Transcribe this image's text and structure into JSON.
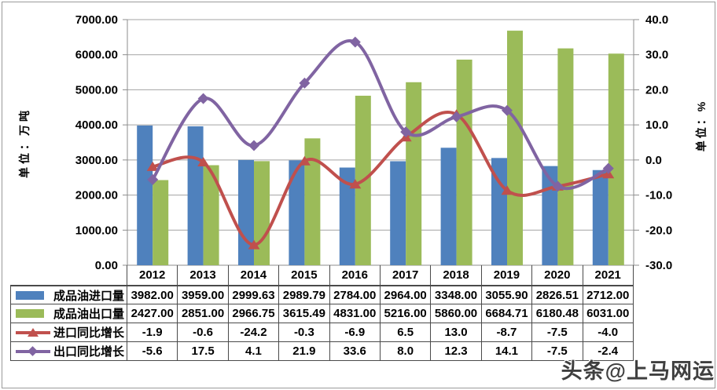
{
  "watermark": "头条@上马网运",
  "chart_data": {
    "type": "combo-bar-line",
    "title": "",
    "categories": [
      "2012",
      "2013",
      "2014",
      "2015",
      "2016",
      "2017",
      "2018",
      "2019",
      "2020",
      "2021"
    ],
    "series": [
      {
        "name": "成品油进口量",
        "type": "bar",
        "axis": "left",
        "color": "#4F81BD",
        "values": [
          3982.0,
          3959.0,
          2999.63,
          2989.79,
          2784.0,
          2964.0,
          3348.0,
          3055.9,
          2826.51,
          2712.0
        ],
        "display": [
          "3982.00",
          "3959.00",
          "2999.63",
          "2989.79",
          "2784.00",
          "2964.00",
          "3348.00",
          "3055.90",
          "2826.51",
          "2712.00"
        ]
      },
      {
        "name": "成品油出口量",
        "type": "bar",
        "axis": "left",
        "color": "#9BBB59",
        "values": [
          2427.0,
          2851.0,
          2966.75,
          3615.49,
          4831.0,
          5216.0,
          5860.0,
          6684.71,
          6180.48,
          6031.0
        ],
        "display": [
          "2427.00",
          "2851.00",
          "2966.75",
          "3615.49",
          "4831.00",
          "5216.00",
          "5860.00",
          "6684.71",
          "6180.48",
          "6031.00"
        ]
      },
      {
        "name": "进口同比增长",
        "type": "line",
        "marker": "triangle",
        "axis": "right",
        "color": "#C0504D",
        "values": [
          -1.9,
          -0.6,
          -24.2,
          -0.3,
          -6.9,
          6.5,
          13.0,
          -8.7,
          -7.5,
          -4.0
        ],
        "display": [
          "-1.9",
          "-0.6",
          "-24.2",
          "-0.3",
          "-6.9",
          "6.5",
          "13.0",
          "-8.7",
          "-7.5",
          "-4.0"
        ]
      },
      {
        "name": "出口同比增长",
        "type": "line",
        "marker": "diamond",
        "axis": "right",
        "color": "#8064A2",
        "values": [
          -5.6,
          17.5,
          4.1,
          21.9,
          33.6,
          8.0,
          12.3,
          14.1,
          -7.5,
          -2.4
        ],
        "display": [
          "-5.6",
          "17.5",
          "4.1",
          "21.9",
          "33.6",
          "8.0",
          "12.3",
          "14.1",
          "-7.5",
          "-2.4"
        ]
      }
    ],
    "left_axis": {
      "title": "单位：万吨",
      "min": 0,
      "max": 7000,
      "step": 1000,
      "tick_labels": [
        "7000.00",
        "6000.00",
        "5000.00",
        "4000.00",
        "3000.00",
        "2000.00",
        "1000.00",
        "0.00"
      ]
    },
    "right_axis": {
      "title": "单位：%",
      "min": -30,
      "max": 40,
      "step": 10,
      "tick_labels": [
        "40.0",
        "30.0",
        "20.0",
        "10.0",
        "0.0",
        "-10.0",
        "-20.0",
        "-30.0"
      ]
    },
    "grid": true,
    "legend_position": "table-left-column"
  },
  "colors": {
    "gridline": "#a3a3a3",
    "axis_line": "#8c8c8c",
    "table_border": "#4a4a4a",
    "text": "#000000"
  }
}
